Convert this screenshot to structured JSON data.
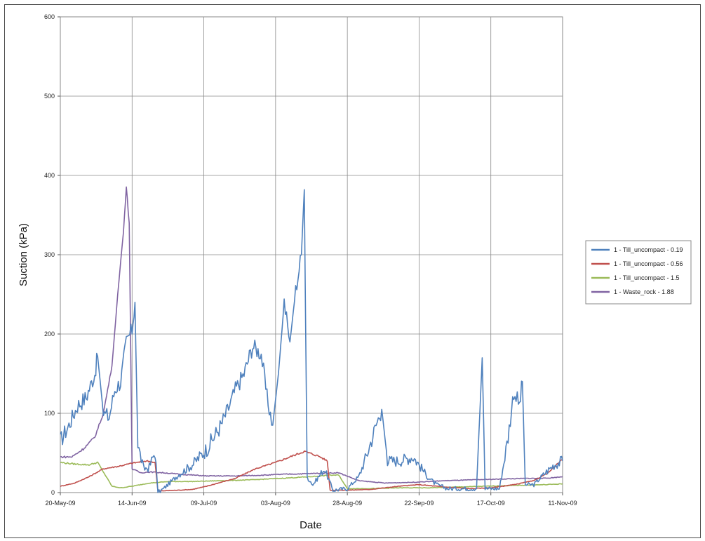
{
  "chart_data": {
    "type": "line",
    "title": "",
    "xlabel": "Date",
    "ylabel": "Suction (kPa)",
    "ylim": [
      0,
      600
    ],
    "yticks": [
      0,
      100,
      200,
      300,
      400,
      500,
      600
    ],
    "xlim": [
      "2009-05-20",
      "2009-11-11"
    ],
    "xticks": [
      "20-May-09",
      "14-Jun-09",
      "09-Jul-09",
      "03-Aug-09",
      "28-Aug-09",
      "22-Sep-09",
      "17-Oct-09",
      "11-Nov-09"
    ],
    "grid": true,
    "legend_position": "right",
    "series": [
      {
        "name": "1 - Till_uncompact - 0.19",
        "color": "#4f81bd",
        "points": [
          [
            "2009-05-20",
            65
          ],
          [
            "2009-05-23",
            85
          ],
          [
            "2009-05-26",
            110
          ],
          [
            "2009-05-29",
            120
          ],
          [
            "2009-06-01",
            150
          ],
          [
            "2009-06-02",
            172
          ],
          [
            "2009-06-04",
            100
          ],
          [
            "2009-06-06",
            95
          ],
          [
            "2009-06-08",
            130
          ],
          [
            "2009-06-10",
            140
          ],
          [
            "2009-06-12",
            190
          ],
          [
            "2009-06-14",
            205
          ],
          [
            "2009-06-15",
            240
          ],
          [
            "2009-06-16",
            60
          ],
          [
            "2009-06-18",
            30
          ],
          [
            "2009-06-20",
            32
          ],
          [
            "2009-06-22",
            52
          ],
          [
            "2009-06-23",
            0
          ],
          [
            "2009-06-25",
            5
          ],
          [
            "2009-06-30",
            22
          ],
          [
            "2009-07-05",
            35
          ],
          [
            "2009-07-10",
            55
          ],
          [
            "2009-07-15",
            85
          ],
          [
            "2009-07-18",
            110
          ],
          [
            "2009-07-20",
            130
          ],
          [
            "2009-07-23",
            150
          ],
          [
            "2009-07-26",
            185
          ],
          [
            "2009-07-29",
            175
          ],
          [
            "2009-07-31",
            120
          ],
          [
            "2009-08-02",
            85
          ],
          [
            "2009-08-04",
            150
          ],
          [
            "2009-08-06",
            240
          ],
          [
            "2009-08-08",
            190
          ],
          [
            "2009-08-10",
            255
          ],
          [
            "2009-08-12",
            300
          ],
          [
            "2009-08-13",
            382
          ],
          [
            "2009-08-14",
            20
          ],
          [
            "2009-08-16",
            10
          ],
          [
            "2009-08-20",
            30
          ],
          [
            "2009-08-23",
            3
          ],
          [
            "2009-08-28",
            5
          ],
          [
            "2009-09-01",
            20
          ],
          [
            "2009-09-04",
            50
          ],
          [
            "2009-09-07",
            85
          ],
          [
            "2009-09-09",
            105
          ],
          [
            "2009-09-11",
            40
          ],
          [
            "2009-09-15",
            40
          ],
          [
            "2009-09-20",
            45
          ],
          [
            "2009-09-25",
            20
          ],
          [
            "2009-09-28",
            10
          ],
          [
            "2009-10-02",
            5
          ],
          [
            "2009-10-08",
            5
          ],
          [
            "2009-10-12",
            5
          ],
          [
            "2009-10-14",
            170
          ],
          [
            "2009-10-15",
            5
          ],
          [
            "2009-10-20",
            5
          ],
          [
            "2009-10-23",
            70
          ],
          [
            "2009-10-25",
            128
          ],
          [
            "2009-10-27",
            110
          ],
          [
            "2009-10-28",
            140
          ],
          [
            "2009-10-29",
            10
          ],
          [
            "2009-11-01",
            10
          ],
          [
            "2009-11-05",
            25
          ],
          [
            "2009-11-08",
            35
          ],
          [
            "2009-11-11",
            40
          ]
        ]
      },
      {
        "name": "1 - Till_uncompact - 0.56",
        "color": "#c0504d",
        "points": [
          [
            "2009-05-20",
            8
          ],
          [
            "2009-05-25",
            12
          ],
          [
            "2009-05-30",
            20
          ],
          [
            "2009-06-04",
            30
          ],
          [
            "2009-06-09",
            33
          ],
          [
            "2009-06-14",
            37
          ],
          [
            "2009-06-19",
            40
          ],
          [
            "2009-06-22",
            38
          ],
          [
            "2009-06-23",
            2
          ],
          [
            "2009-06-30",
            3
          ],
          [
            "2009-07-05",
            4
          ],
          [
            "2009-07-10",
            8
          ],
          [
            "2009-07-20",
            18
          ],
          [
            "2009-07-27",
            30
          ],
          [
            "2009-08-03",
            38
          ],
          [
            "2009-08-08",
            45
          ],
          [
            "2009-08-13",
            52
          ],
          [
            "2009-08-18",
            46
          ],
          [
            "2009-08-21",
            40
          ],
          [
            "2009-08-22",
            3
          ],
          [
            "2009-08-28",
            3
          ],
          [
            "2009-09-05",
            4
          ],
          [
            "2009-09-15",
            8
          ],
          [
            "2009-09-22",
            10
          ],
          [
            "2009-10-01",
            7
          ],
          [
            "2009-10-10",
            5
          ],
          [
            "2009-10-17",
            6
          ],
          [
            "2009-10-25",
            10
          ],
          [
            "2009-11-01",
            15
          ],
          [
            "2009-11-06",
            25
          ],
          [
            "2009-11-11",
            42
          ]
        ]
      },
      {
        "name": "1 - Till_uncompact - 1.5",
        "color": "#9bbb59",
        "points": [
          [
            "2009-05-20",
            38
          ],
          [
            "2009-05-25",
            36
          ],
          [
            "2009-05-30",
            35
          ],
          [
            "2009-06-02",
            38
          ],
          [
            "2009-06-05",
            20
          ],
          [
            "2009-06-07",
            8
          ],
          [
            "2009-06-10",
            6
          ],
          [
            "2009-06-14",
            8
          ],
          [
            "2009-06-20",
            12
          ],
          [
            "2009-06-27",
            14
          ],
          [
            "2009-07-05",
            14
          ],
          [
            "2009-07-15",
            15
          ],
          [
            "2009-07-25",
            16
          ],
          [
            "2009-08-05",
            18
          ],
          [
            "2009-08-15",
            20
          ],
          [
            "2009-08-22",
            22
          ],
          [
            "2009-08-25",
            22
          ],
          [
            "2009-08-28",
            5
          ],
          [
            "2009-09-05",
            5
          ],
          [
            "2009-09-15",
            6
          ],
          [
            "2009-09-25",
            6
          ],
          [
            "2009-10-05",
            7
          ],
          [
            "2009-10-15",
            8
          ],
          [
            "2009-10-25",
            9
          ],
          [
            "2009-11-05",
            10
          ],
          [
            "2009-11-11",
            11
          ]
        ]
      },
      {
        "name": "1 - Waste_rock - 1.88",
        "color": "#8064a2",
        "points": [
          [
            "2009-05-20",
            45
          ],
          [
            "2009-05-24",
            45
          ],
          [
            "2009-05-28",
            55
          ],
          [
            "2009-06-01",
            70
          ],
          [
            "2009-06-04",
            100
          ],
          [
            "2009-06-07",
            160
          ],
          [
            "2009-06-09",
            250
          ],
          [
            "2009-06-11",
            330
          ],
          [
            "2009-06-12",
            385
          ],
          [
            "2009-06-13",
            340
          ],
          [
            "2009-06-14",
            30
          ],
          [
            "2009-06-17",
            25
          ],
          [
            "2009-06-20",
            26
          ],
          [
            "2009-06-25",
            25
          ],
          [
            "2009-07-01",
            23
          ],
          [
            "2009-07-10",
            21
          ],
          [
            "2009-07-20",
            21
          ],
          [
            "2009-07-30",
            22
          ],
          [
            "2009-08-05",
            23
          ],
          [
            "2009-08-15",
            24
          ],
          [
            "2009-08-25",
            25
          ],
          [
            "2009-09-01",
            15
          ],
          [
            "2009-09-10",
            12
          ],
          [
            "2009-09-20",
            13
          ],
          [
            "2009-10-01",
            15
          ],
          [
            "2009-10-10",
            16
          ],
          [
            "2009-10-20",
            17
          ],
          [
            "2009-10-30",
            18
          ],
          [
            "2009-11-05",
            18
          ],
          [
            "2009-11-11",
            20
          ]
        ]
      }
    ]
  }
}
